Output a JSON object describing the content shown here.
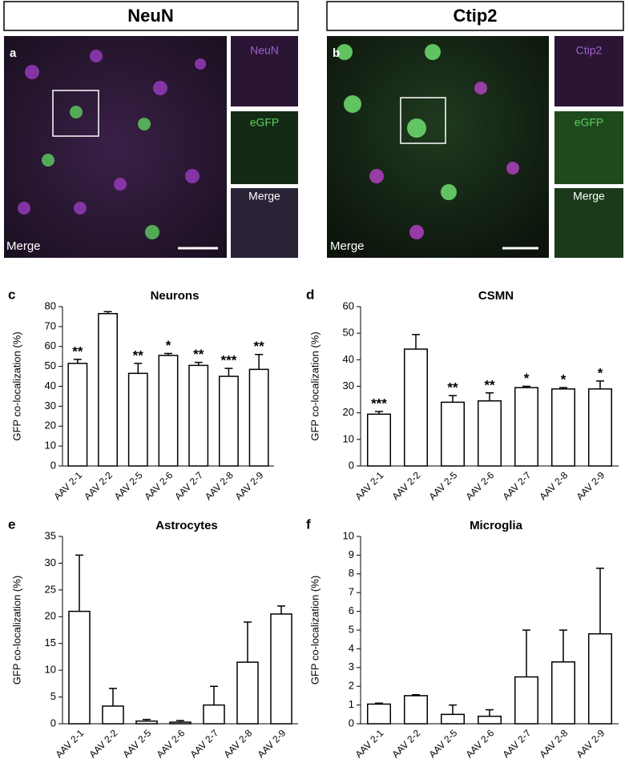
{
  "headers": [
    "NeuN",
    "Ctip2"
  ],
  "image_panels": [
    {
      "letter": "a",
      "label": "Merge",
      "insets": [
        "NeuN",
        "eGFP",
        "Merge"
      ]
    },
    {
      "letter": "b",
      "label": "Merge",
      "insets": [
        "Ctip2",
        "eGFP",
        "Merge"
      ]
    }
  ],
  "chart_data": [
    {
      "type": "bar",
      "panel": "c",
      "title": "Neurons",
      "y_label": "GFP co-localization (%)",
      "categories": [
        "AAV 2-1",
        "AAV 2-2",
        "AAV 2-5",
        "AAV 2-6",
        "AAV 2-7",
        "AAV 2-8",
        "AAV 2-9"
      ],
      "values": [
        51.5,
        76.5,
        46.5,
        55.5,
        50.5,
        45,
        48.5
      ],
      "errors": [
        2,
        1,
        5,
        1,
        1.5,
        4,
        7.5
      ],
      "annotations": [
        "**",
        null,
        "**",
        "*",
        "**",
        "***",
        "**"
      ],
      "ylim": [
        0,
        80
      ],
      "yticks": [
        0,
        10,
        20,
        30,
        40,
        50,
        60,
        70,
        80
      ],
      "color": "#ffffff"
    },
    {
      "type": "bar",
      "panel": "d",
      "title": "CSMN",
      "y_label": "GFP co-localization (%)",
      "categories": [
        "AAV 2-1",
        "AAV 2-2",
        "AAV 2-5",
        "AAV 2-6",
        "AAV 2-7",
        "AAV 2-8",
        "AAV 2-9"
      ],
      "values": [
        19.5,
        44,
        24,
        24.5,
        29.5,
        29,
        29
      ],
      "errors": [
        1,
        5.5,
        2.5,
        3,
        0.5,
        0.5,
        3
      ],
      "annotations": [
        "***",
        null,
        "**",
        "**",
        "*",
        "*",
        "*"
      ],
      "ylim": [
        0,
        60
      ],
      "yticks": [
        0,
        10,
        20,
        30,
        40,
        50,
        60
      ],
      "color": "#ffffff"
    },
    {
      "type": "bar",
      "panel": "e",
      "title": "Astrocytes",
      "y_label": "GFP co-localization (%)",
      "categories": [
        "AAV 2-1",
        "AAV 2-2",
        "AAV 2-5",
        "AAV 2-6",
        "AAV 2-7",
        "AAV 2-8",
        "AAV 2-9"
      ],
      "values": [
        21,
        3.3,
        0.5,
        0.3,
        3.5,
        11.5,
        20.5
      ],
      "errors": [
        10.5,
        3.3,
        0.3,
        0.3,
        3.5,
        7.5,
        1.5
      ],
      "ylim": [
        0,
        35
      ],
      "yticks": [
        0,
        5,
        10,
        15,
        20,
        25,
        30,
        35
      ],
      "color": "#ffffff"
    },
    {
      "type": "bar",
      "panel": "f",
      "title": "Microglia",
      "y_label": "GFP co-localization (%)",
      "categories": [
        "AAV 2-1",
        "AAV 2-2",
        "AAV 2-5",
        "AAV 2-6",
        "AAV 2-7",
        "AAV 2-8",
        "AAV 2-9"
      ],
      "values": [
        1.05,
        1.5,
        0.5,
        0.4,
        2.5,
        3.3,
        4.8
      ],
      "errors": [
        0.05,
        0.05,
        0.5,
        0.35,
        2.5,
        1.7,
        3.5
      ],
      "ylim": [
        0,
        10
      ],
      "yticks": [
        0,
        1,
        2,
        3,
        4,
        5,
        6,
        7,
        8,
        9,
        10
      ],
      "color": "#ffffff"
    }
  ]
}
